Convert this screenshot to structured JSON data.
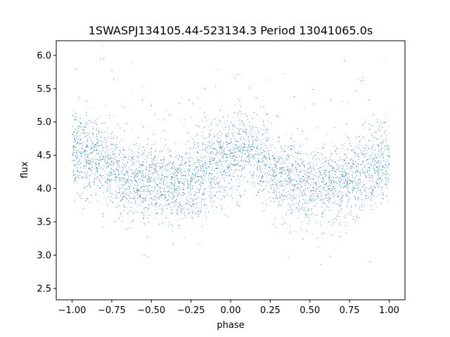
{
  "chart_data": {
    "type": "scatter",
    "title": "1SWASPJ134105.44-523134.3 Period 13041065.0s",
    "xlabel": "phase",
    "ylabel": "flux",
    "xlim": [
      -1.1,
      1.1
    ],
    "ylim": [
      2.33,
      6.22
    ],
    "xticks": [
      -1.0,
      -0.75,
      -0.5,
      -0.25,
      0.0,
      0.25,
      0.5,
      0.75,
      1.0
    ],
    "xtick_labels": [
      "−1.00",
      "−0.75",
      "−0.50",
      "−0.25",
      "0.00",
      "0.25",
      "0.50",
      "0.75",
      "1.00"
    ],
    "yticks": [
      2.5,
      3.0,
      3.5,
      4.0,
      4.5,
      5.0,
      5.5,
      6.0
    ],
    "ytick_labels": [
      "2.5",
      "3.0",
      "3.5",
      "4.0",
      "4.5",
      "5.0",
      "5.5",
      "6.0"
    ],
    "grid": false,
    "legend": "none",
    "marker_color": "#1f77b4",
    "series": [
      {
        "profile_phase": [
          -1.0,
          -0.9,
          -0.8,
          -0.75,
          -0.7,
          -0.6,
          -0.5,
          -0.4,
          -0.3,
          -0.25,
          -0.2,
          -0.1,
          0.0,
          0.1,
          0.2,
          0.25,
          0.3,
          0.4,
          0.5,
          0.6,
          0.7,
          0.75,
          0.8,
          0.9,
          1.0
        ],
        "profile_flux_center": [
          4.6,
          4.5,
          4.4,
          4.35,
          4.2,
          4.15,
          4.1,
          4.05,
          4.05,
          4.1,
          4.2,
          4.35,
          4.5,
          4.55,
          4.4,
          4.35,
          4.2,
          4.15,
          4.05,
          4.05,
          4.1,
          4.15,
          4.2,
          4.3,
          4.45
        ],
        "phase_min": -1.0,
        "phase_max": 1.0,
        "point_count": 9000,
        "flux_spread": 0.3
      }
    ]
  }
}
